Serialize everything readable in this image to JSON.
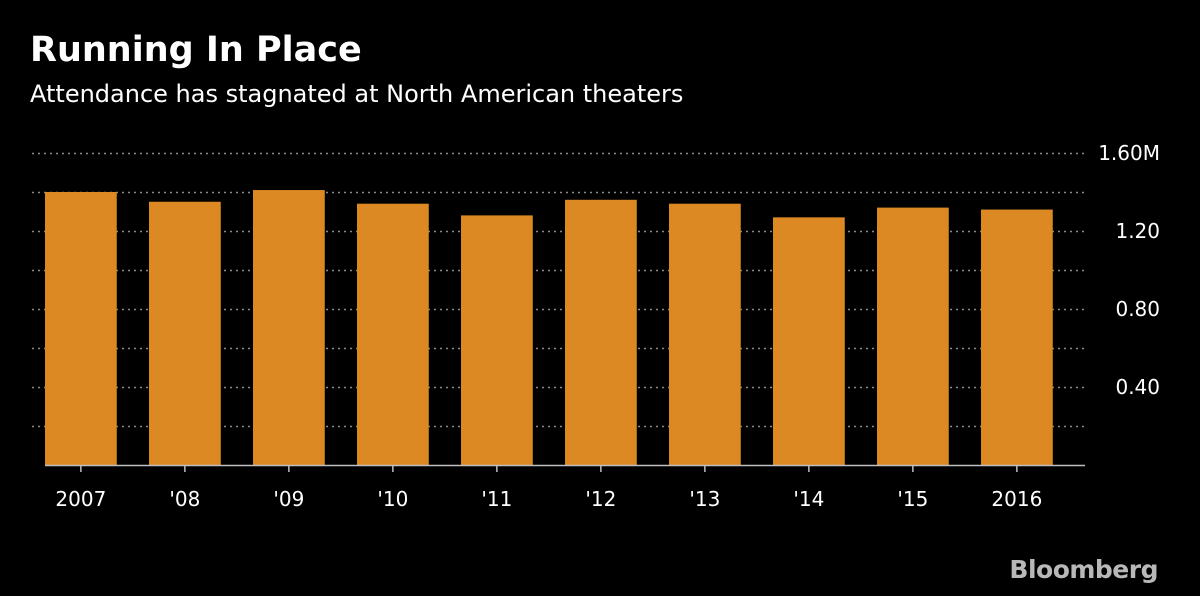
{
  "header": {
    "title": "Running In Place",
    "subtitle": "Attendance has stagnated at North American theaters"
  },
  "brand": {
    "logo_text": "Bloomberg"
  },
  "colors": {
    "background": "#000000",
    "bar": "#dc8923",
    "gridline": "#8a8a8a",
    "axis": "#bfbfbf",
    "text": "#ffffff",
    "logo": "#b8b8b8"
  },
  "chart_data": {
    "type": "bar",
    "title": "Running In Place",
    "subtitle": "Attendance has stagnated at North American theaters",
    "categories": [
      "2007",
      "'08",
      "'09",
      "'10",
      "'11",
      "'12",
      "'13",
      "'14",
      "'15",
      "2016"
    ],
    "values": [
      1.4,
      1.35,
      1.41,
      1.34,
      1.28,
      1.36,
      1.34,
      1.27,
      1.32,
      1.31
    ],
    "ylim": [
      0,
      1.6
    ],
    "y_ticks": [
      {
        "value": 0.4,
        "label": "0.40"
      },
      {
        "value": 0.8,
        "label": "0.80"
      },
      {
        "value": 1.2,
        "label": "1.20"
      },
      {
        "value": 1.6,
        "label": "1.60M"
      }
    ],
    "y_minor_gridlines": [
      0.2,
      0.6,
      1.0,
      1.4
    ],
    "y_axis_side": "right",
    "grid": true,
    "grid_style": "dotted",
    "legend": "none"
  }
}
